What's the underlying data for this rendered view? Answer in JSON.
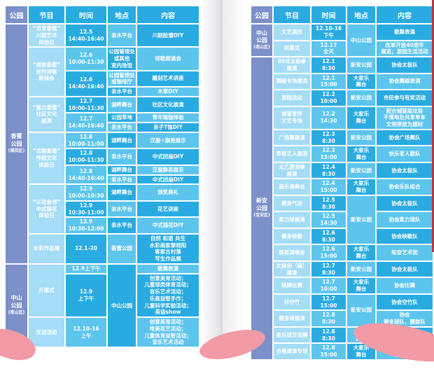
{
  "palette": {
    "bright_blue": "#29abe2",
    "light_blue": "#5cc5ee",
    "pale_blue": "#a5dcf6",
    "slate_blue": "#7c90c9",
    "text_white": "#ffffff",
    "ribbon_pink": "#f29aa5",
    "ribbon_red": "#b43946"
  },
  "panels": [
    {
      "id": "left",
      "headers": [
        "公园",
        "节目",
        "时间",
        "地点",
        "内容"
      ],
      "parks": [
        {
          "name": "香蜜\n公园",
          "district": "(福田区)",
          "rows": 15
        },
        {
          "name": "中山\n公园",
          "district": "(南山区)",
          "rows": 3
        }
      ],
      "rows": [
        {
          "program": {
            "text": "“百变香蜜”\n川剧艺术\n体验日"
          },
          "time": {
            "text": "12.5\n14:40-16:40"
          },
          "loc": {
            "text": "亲水平台"
          },
          "content": "川剧脸谱DIY"
        },
        {
          "program": {
            "text": "“颂誉香蜜”\n创作诗歌\n朗诵会",
            "span": 3
          },
          "time": {
            "text": "12.6\n10:00-11:30"
          },
          "loc": {
            "text": "公园管理处\n或其他\n室内场馆"
          },
          "content": "诗歌朗诵会"
        },
        {
          "time": {
            "text": "12.6\n14:40-16:40",
            "span": 2
          },
          "loc": {
            "text": "公园管理处\n或咖啡厅"
          },
          "content": "雕刻艺术讲座"
        },
        {
          "loc": {
            "text": "亲水平台"
          },
          "content": "木章DIY"
        },
        {
          "program": {
            "text": "“魅力香蜜”\n社区文化\n展演",
            "span": 3
          },
          "time": {
            "text": "12.7\n10:00-11:30"
          },
          "loc": {
            "text": "湖畔舞台"
          },
          "content": "社区文化展演"
        },
        {
          "time": {
            "text": "12.7\n14:40-16:40",
            "span": 2
          },
          "loc": {
            "text": "公园草地"
          },
          "content": "青年瑜伽体验"
        },
        {
          "loc": {
            "text": "亲水平台"
          },
          "content": "亲子T恤DIY"
        },
        {
          "program": {
            "text": "“古韵香蜜”\n传统文化\n体验日",
            "span": 4
          },
          "time": {
            "text": "12.8\n10:00-11:00"
          },
          "loc": {
            "text": "湖畔舞台"
          },
          "content": "汉服+旗袍展示"
        },
        {
          "time": {
            "text": "12.8\n10:00-11:30"
          },
          "loc": {
            "text": "亲水平台"
          },
          "content": "中式团扇DIY"
        },
        {
          "time": {
            "text": "12.8\n14:40-16:40",
            "span": 2
          },
          "loc": {
            "text": "湖畔舞台"
          },
          "content": "汉服静态展示"
        },
        {
          "loc": {
            "text": "亲水平台"
          },
          "content": "中式团扇DIY"
        },
        {
          "program": {
            "text": "“以花会邻”\n中式插花\n体验日",
            "span": 3
          },
          "time": {
            "text": "12.9\n10:00-10:30"
          },
          "loc": {
            "text": "湖畔舞台"
          },
          "content": "颁奖典礼"
        },
        {
          "time": {
            "text": "12.9\n10:30-11:00"
          },
          "loc": {
            "text": "亲水平台"
          },
          "content": "花艺讲座"
        },
        {
          "time": {
            "text": "12.9\n10:30-12:00"
          },
          "loc": {
            "text": "亲水平台"
          },
          "content": "中式插花DIY"
        },
        {
          "program": {
            "text": "水彩作品展"
          },
          "time": {
            "text": "12.1-20"
          },
          "loc": {
            "text": "香蜜公园"
          },
          "content": "自然 和谐 共生\n水彩画家黎晓阳\n客家古村落\n写生作品展"
        },
        {
          "program": {
            "text": "开幕式",
            "span": 2
          },
          "time": {
            "text": "12.9上下午"
          },
          "loc": {
            "text": "中山公园",
            "span": 3
          },
          "content": "歌舞表演"
        },
        {
          "time": {
            "text": "12.9\n上下午"
          },
          "content": "创意美育活动；\n儿童球类体育活动；\n音乐艺术活动；\n乐高益智手作；\n儿童科学实验活动；\n英语show"
        },
        {
          "program": {
            "text": "互动活动"
          },
          "time": {
            "text": "12.10-16\n上午"
          },
          "content": "创意美育活动；\n唯美花艺活动；\n儿童体育益智活动；\n音乐艺术活动"
        }
      ]
    },
    {
      "id": "right",
      "headers": [
        "公园",
        "节目",
        "时间",
        "地点",
        "内容"
      ],
      "parks": [
        {
          "name": "中山\n公园",
          "district": "(南山区)",
          "rows": 2
        },
        {
          "name": "新安\n公园",
          "district": "(宝安区)",
          "rows": 18
        }
      ],
      "rows": [
        {
          "program": {
            "text": "文艺演出"
          },
          "time": {
            "text": "12.10-16\n下午"
          },
          "loc": {
            "text": "中山公园",
            "span": 2
          },
          "content": "歌舞表演"
        },
        {
          "program": {
            "text": "闭幕式"
          },
          "time": {
            "text": "12.17\n全天"
          },
          "content": "改革开放40周年\n展览；游园生活活动"
        },
        {
          "program": {
            "text": "85式太极拳\n展演"
          },
          "time": {
            "text": "12.1\n8:30"
          },
          "loc": {
            "text": "新安公园"
          },
          "content": "协会太极队"
        },
        {
          "program": {
            "text": "舞蹈专场展演"
          },
          "time": {
            "text": "12.1\n15:00"
          },
          "loc": {
            "text": "大家乐\n舞台"
          },
          "content": "协会舞蹈表演"
        },
        {
          "program": {
            "text": "游园活动"
          },
          "time": {
            "text": "12.2\n10:00"
          },
          "loc": {
            "text": "新安公园"
          },
          "content": "市民参与有奖活动"
        },
        {
          "program": {
            "text": "城管宣传\n文艺专场"
          },
          "time": {
            "text": "12.2\n14:30"
          },
          "loc": {
            "text": "大家乐\n舞台"
          },
          "content": "配合城管局垃圾\n不落地及共享单车\n文明停放为题材"
        },
        {
          "program": {
            "text": "广场舞展演"
          },
          "time": {
            "text": "12.3\n8:30"
          },
          "loc": {
            "text": "新安公园"
          },
          "content": "协会广场舞队"
        },
        {
          "program": {
            "text": "草根艺人展演"
          },
          "time": {
            "text": "12.3\n15:00"
          },
          "loc": {
            "text": "大家乐\n舞台"
          },
          "content": "快乐老人歌队"
        },
        {
          "program": {
            "text": "太乙游龙拳\n展演"
          },
          "time": {
            "text": "12.4\n8:30"
          },
          "loc": {
            "text": "新安公园"
          },
          "content": "协会太极队"
        },
        {
          "program": {
            "text": "器乐演奏会"
          },
          "time": {
            "text": "12.4\n15:00"
          },
          "loc": {
            "text": "大家乐\n舞台"
          },
          "content": "协会乐队组合"
        },
        {
          "program": {
            "text": "健身气功"
          },
          "time": {
            "text": "12.5\n8:30"
          },
          "loc": {
            "text": "新安公园",
            "span": 3
          },
          "content": "协会太极队"
        },
        {
          "program": {
            "text": "柔力球展演"
          },
          "time": {
            "text": "12.5\n14:30"
          },
          "content": "协会柔力球队"
        },
        {
          "program": {
            "text": "健身秧歌"
          },
          "time": {
            "text": "12.6\n8:30"
          },
          "content": "协会秧歌队"
        },
        {
          "program": {
            "text": "群星演唱会"
          },
          "time": {
            "text": "12.6\n15:00"
          },
          "loc": {
            "text": "大家乐\n舞台"
          },
          "content": "知音艺术团"
        },
        {
          "program": {
            "text": "太极剑（扇）\n展演"
          },
          "time": {
            "text": "12.7\n8:30"
          },
          "loc": {
            "text": "新安公园"
          },
          "content": "协会太极队"
        },
        {
          "program": {
            "text": "棋牌比赛"
          },
          "time": {
            "text": "12.7\n10:00"
          },
          "loc": {
            "text": "大家乐\n舞台"
          },
          "content": "协会比赛"
        },
        {
          "program": {
            "text": "抖空竹"
          },
          "time": {
            "text": "12.7\n15:00"
          },
          "loc": {
            "text": "新安公园",
            "span": 2
          },
          "content": "协会空竹队"
        },
        {
          "program": {
            "text": "健身球展演"
          },
          "time": {
            "text": "12.8\n8:30"
          },
          "content": "协会\n健身球队、腰鼓队"
        },
        {
          "program": {
            "text": "柔乐球交流赛"
          },
          "time": {
            "text": "12.8\n8:30"
          },
          "loc": {
            "text": "大家乐\n舞台"
          },
          "content": "协会柔乐球队"
        },
        {
          "program": {
            "text": "合唱展演专场"
          },
          "time": {
            "text": "12.8\n15:00"
          },
          "loc": {
            "text": "大家乐\n舞台"
          },
          "content": "协会合唱团及\n各活动点"
        }
      ]
    }
  ]
}
